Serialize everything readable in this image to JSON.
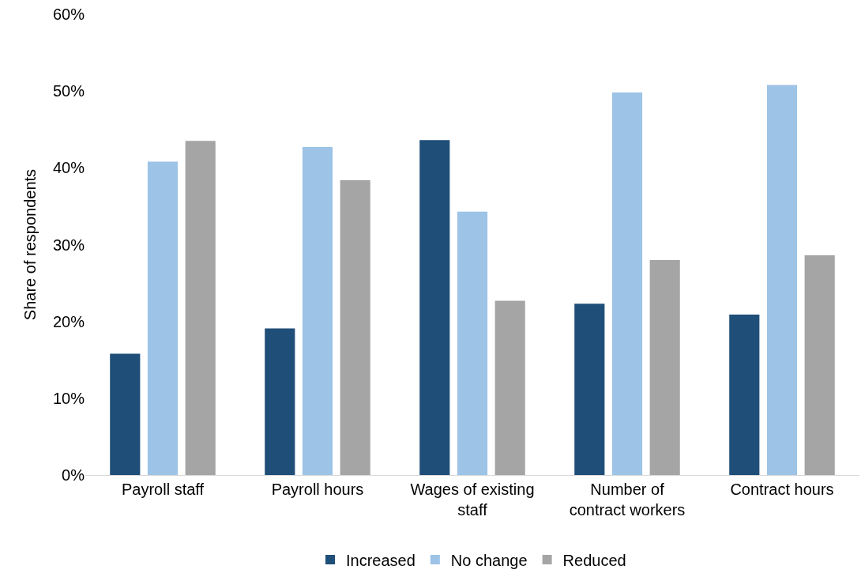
{
  "chart_data": {
    "type": "bar",
    "ylabel": "Share of respondents",
    "categories": [
      "Payroll staff",
      "Payroll hours",
      "Wages of existing\nstaff",
      "Number of\ncontract workers",
      "Contract hours"
    ],
    "series": [
      {
        "name": "Increased",
        "color": "#1f4e79",
        "values": [
          15.8,
          19.1,
          43.6,
          22.3,
          20.9
        ]
      },
      {
        "name": "No change",
        "color": "#9dc3e6",
        "values": [
          40.8,
          42.7,
          34.3,
          49.8,
          50.8
        ]
      },
      {
        "name": "Reduced",
        "color": "#a5a5a5",
        "values": [
          43.5,
          38.4,
          22.7,
          28.0,
          28.6
        ]
      }
    ],
    "ylim": [
      0,
      60
    ],
    "yticks": [
      {
        "value": 0,
        "label": "0%"
      },
      {
        "value": 10,
        "label": "10%"
      },
      {
        "value": 20,
        "label": "20%"
      },
      {
        "value": 30,
        "label": "30%"
      },
      {
        "value": 40,
        "label": "40%"
      },
      {
        "value": 50,
        "label": "50%"
      },
      {
        "value": 60,
        "label": "60%"
      }
    ],
    "grid": false,
    "legend": "bottom"
  }
}
